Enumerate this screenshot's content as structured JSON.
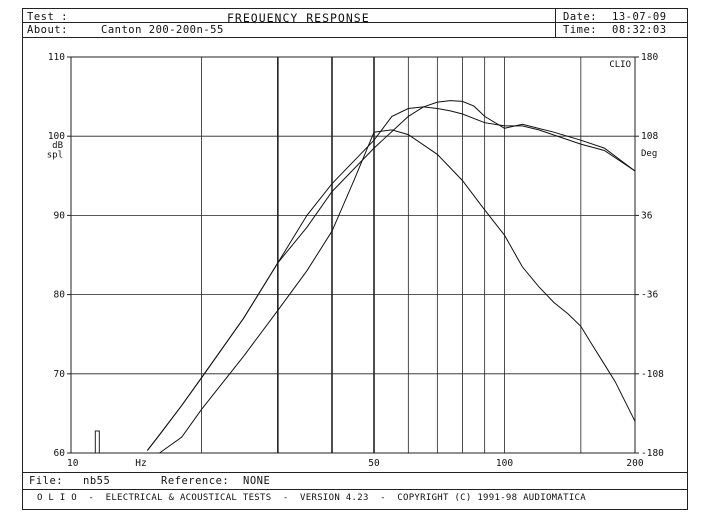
{
  "header": {
    "test_label": "Test :",
    "about_label": "About:",
    "about_value": "Canton 200-200n-55",
    "title": "FREQUENCY RESPONSE",
    "date_label": "Date:",
    "date_value": "13-07-09",
    "time_label": "Time:",
    "time_value": "08:32:03"
  },
  "footer": {
    "file_label": "File:",
    "file_value": "nb55",
    "reference_label": "Reference:",
    "reference_value": "NONE",
    "copyright": "O L I O  -  ELECTRICAL & ACOUSTICAL TESTS  -  VERSION 4.23  -  COPYRIGHT (C) 1991-98 AUDIOMATICA"
  },
  "chart_data": {
    "type": "line",
    "x_scale": "log",
    "xlim": [
      10,
      200
    ],
    "ylim": [
      60,
      110
    ],
    "y2lim": [
      -180,
      180
    ],
    "ylabel_top": "dB",
    "ylabel_bottom": "spl",
    "y2label": "Deg",
    "corner_label": "CLIO",
    "x_unit_label": "Hz",
    "x_tick_labels": [
      {
        "value": 10,
        "text": "10"
      },
      {
        "value": 50,
        "text": "50"
      },
      {
        "value": 100,
        "text": "100"
      },
      {
        "value": 200,
        "text": "200"
      }
    ],
    "y_ticks": [
      60,
      70,
      80,
      90,
      100,
      110
    ],
    "y2_ticks": [
      180,
      108,
      36,
      -36,
      -108,
      -180
    ],
    "grid": true,
    "x_gridlines": [
      20,
      30,
      40,
      50,
      60,
      70,
      80,
      90,
      100,
      150
    ],
    "marker_bar_x": 11.5,
    "series": [
      {
        "x": [
          15,
          16,
          18,
          20,
          25,
          30,
          35,
          40,
          50,
          55,
          60,
          65,
          70,
          75,
          80,
          90,
          100,
          110,
          120,
          150,
          170,
          200
        ],
        "y": [
          60.3,
          62.3,
          66,
          69.5,
          77,
          84,
          90,
          94,
          99.5,
          102.5,
          103.5,
          103.7,
          103.5,
          103.2,
          102.8,
          101.7,
          101.3,
          101.3,
          100.8,
          99,
          98.2,
          95.6
        ]
      },
      {
        "x": [
          15,
          16,
          18,
          20,
          25,
          30,
          35,
          40,
          50,
          60,
          65,
          70,
          75,
          80,
          85,
          90,
          100,
          110,
          130,
          150,
          170,
          200
        ],
        "y": [
          60.3,
          62.3,
          66,
          69.5,
          77,
          84,
          88.5,
          93,
          98.5,
          102.5,
          103.7,
          104.3,
          104.5,
          104.4,
          103.8,
          102.5,
          101,
          101.5,
          100.5,
          99.5,
          98.5,
          95.6
        ]
      },
      {
        "x": [
          16,
          18,
          20,
          25,
          30,
          35,
          40,
          45,
          50,
          55,
          60,
          70,
          80,
          90,
          100,
          110,
          120,
          130,
          140,
          150,
          160,
          170,
          180,
          200
        ],
        "y": [
          60,
          62,
          65.5,
          72.2,
          78,
          83,
          88,
          94.5,
          100.5,
          100.8,
          100.2,
          97.7,
          94.4,
          90.7,
          87.5,
          83.5,
          81,
          79,
          77.6,
          76,
          73.5,
          71.2,
          69,
          64
        ]
      }
    ]
  }
}
